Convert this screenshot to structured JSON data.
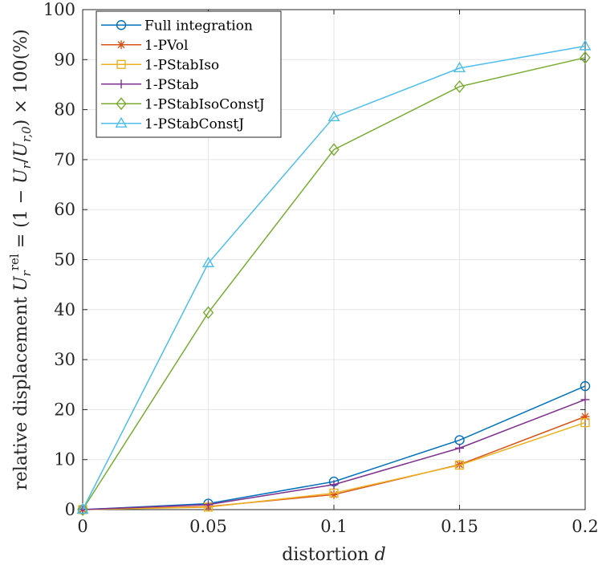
{
  "chart_data": {
    "type": "line",
    "title": "",
    "xlabel": {
      "prefix": "distortion ",
      "var": "d"
    },
    "ylabel": {
      "prefix": "relative displacement ",
      "sym": "U",
      "sub": "r",
      "sup": "rel",
      "eq": " = (1 − ",
      "num_sym": "U",
      "num_sub": "r",
      "slash": "/",
      "den_sym": "U",
      "den_sub": "r,0",
      "tail": ") × 100(%)"
    },
    "x": [
      0,
      0.05,
      0.1,
      0.15,
      0.2
    ],
    "xlim": [
      0,
      0.2
    ],
    "ylim": [
      0,
      100
    ],
    "xticks": [
      0,
      0.05,
      0.1,
      0.15,
      0.2
    ],
    "xtick_labels": [
      "0",
      "0.05",
      "0.1",
      "0.15",
      "0.2"
    ],
    "yticks": [
      0,
      10,
      20,
      30,
      40,
      50,
      60,
      70,
      80,
      90,
      100
    ],
    "ytick_labels": [
      "0",
      "10",
      "20",
      "30",
      "40",
      "50",
      "60",
      "70",
      "80",
      "90",
      "100"
    ],
    "grid": true,
    "legend_position": "top-left",
    "series": [
      {
        "name": "Full integration",
        "marker": "circle",
        "color": "#0072BD",
        "values": [
          0,
          1.2,
          5.6,
          13.9,
          24.7
        ]
      },
      {
        "name": "1-PVol",
        "marker": "asterisk",
        "color": "#D95319",
        "values": [
          0,
          0.6,
          3.0,
          9.0,
          18.6
        ]
      },
      {
        "name": "1-PStabIso",
        "marker": "square",
        "color": "#EDB120",
        "values": [
          0,
          0.5,
          3.3,
          8.9,
          17.4
        ]
      },
      {
        "name": "1-PStab",
        "marker": "plus",
        "color": "#7E2F8E",
        "values": [
          0,
          1.0,
          5.0,
          12.3,
          22.0
        ]
      },
      {
        "name": "1-PStabIsoConstJ",
        "marker": "diamond",
        "color": "#77AC30",
        "values": [
          0,
          39.4,
          72.0,
          84.6,
          90.4
        ]
      },
      {
        "name": "1-PStabConstJ",
        "marker": "triangle",
        "color": "#4DBEEE",
        "values": [
          0,
          49.3,
          78.5,
          88.3,
          92.7
        ]
      }
    ]
  }
}
